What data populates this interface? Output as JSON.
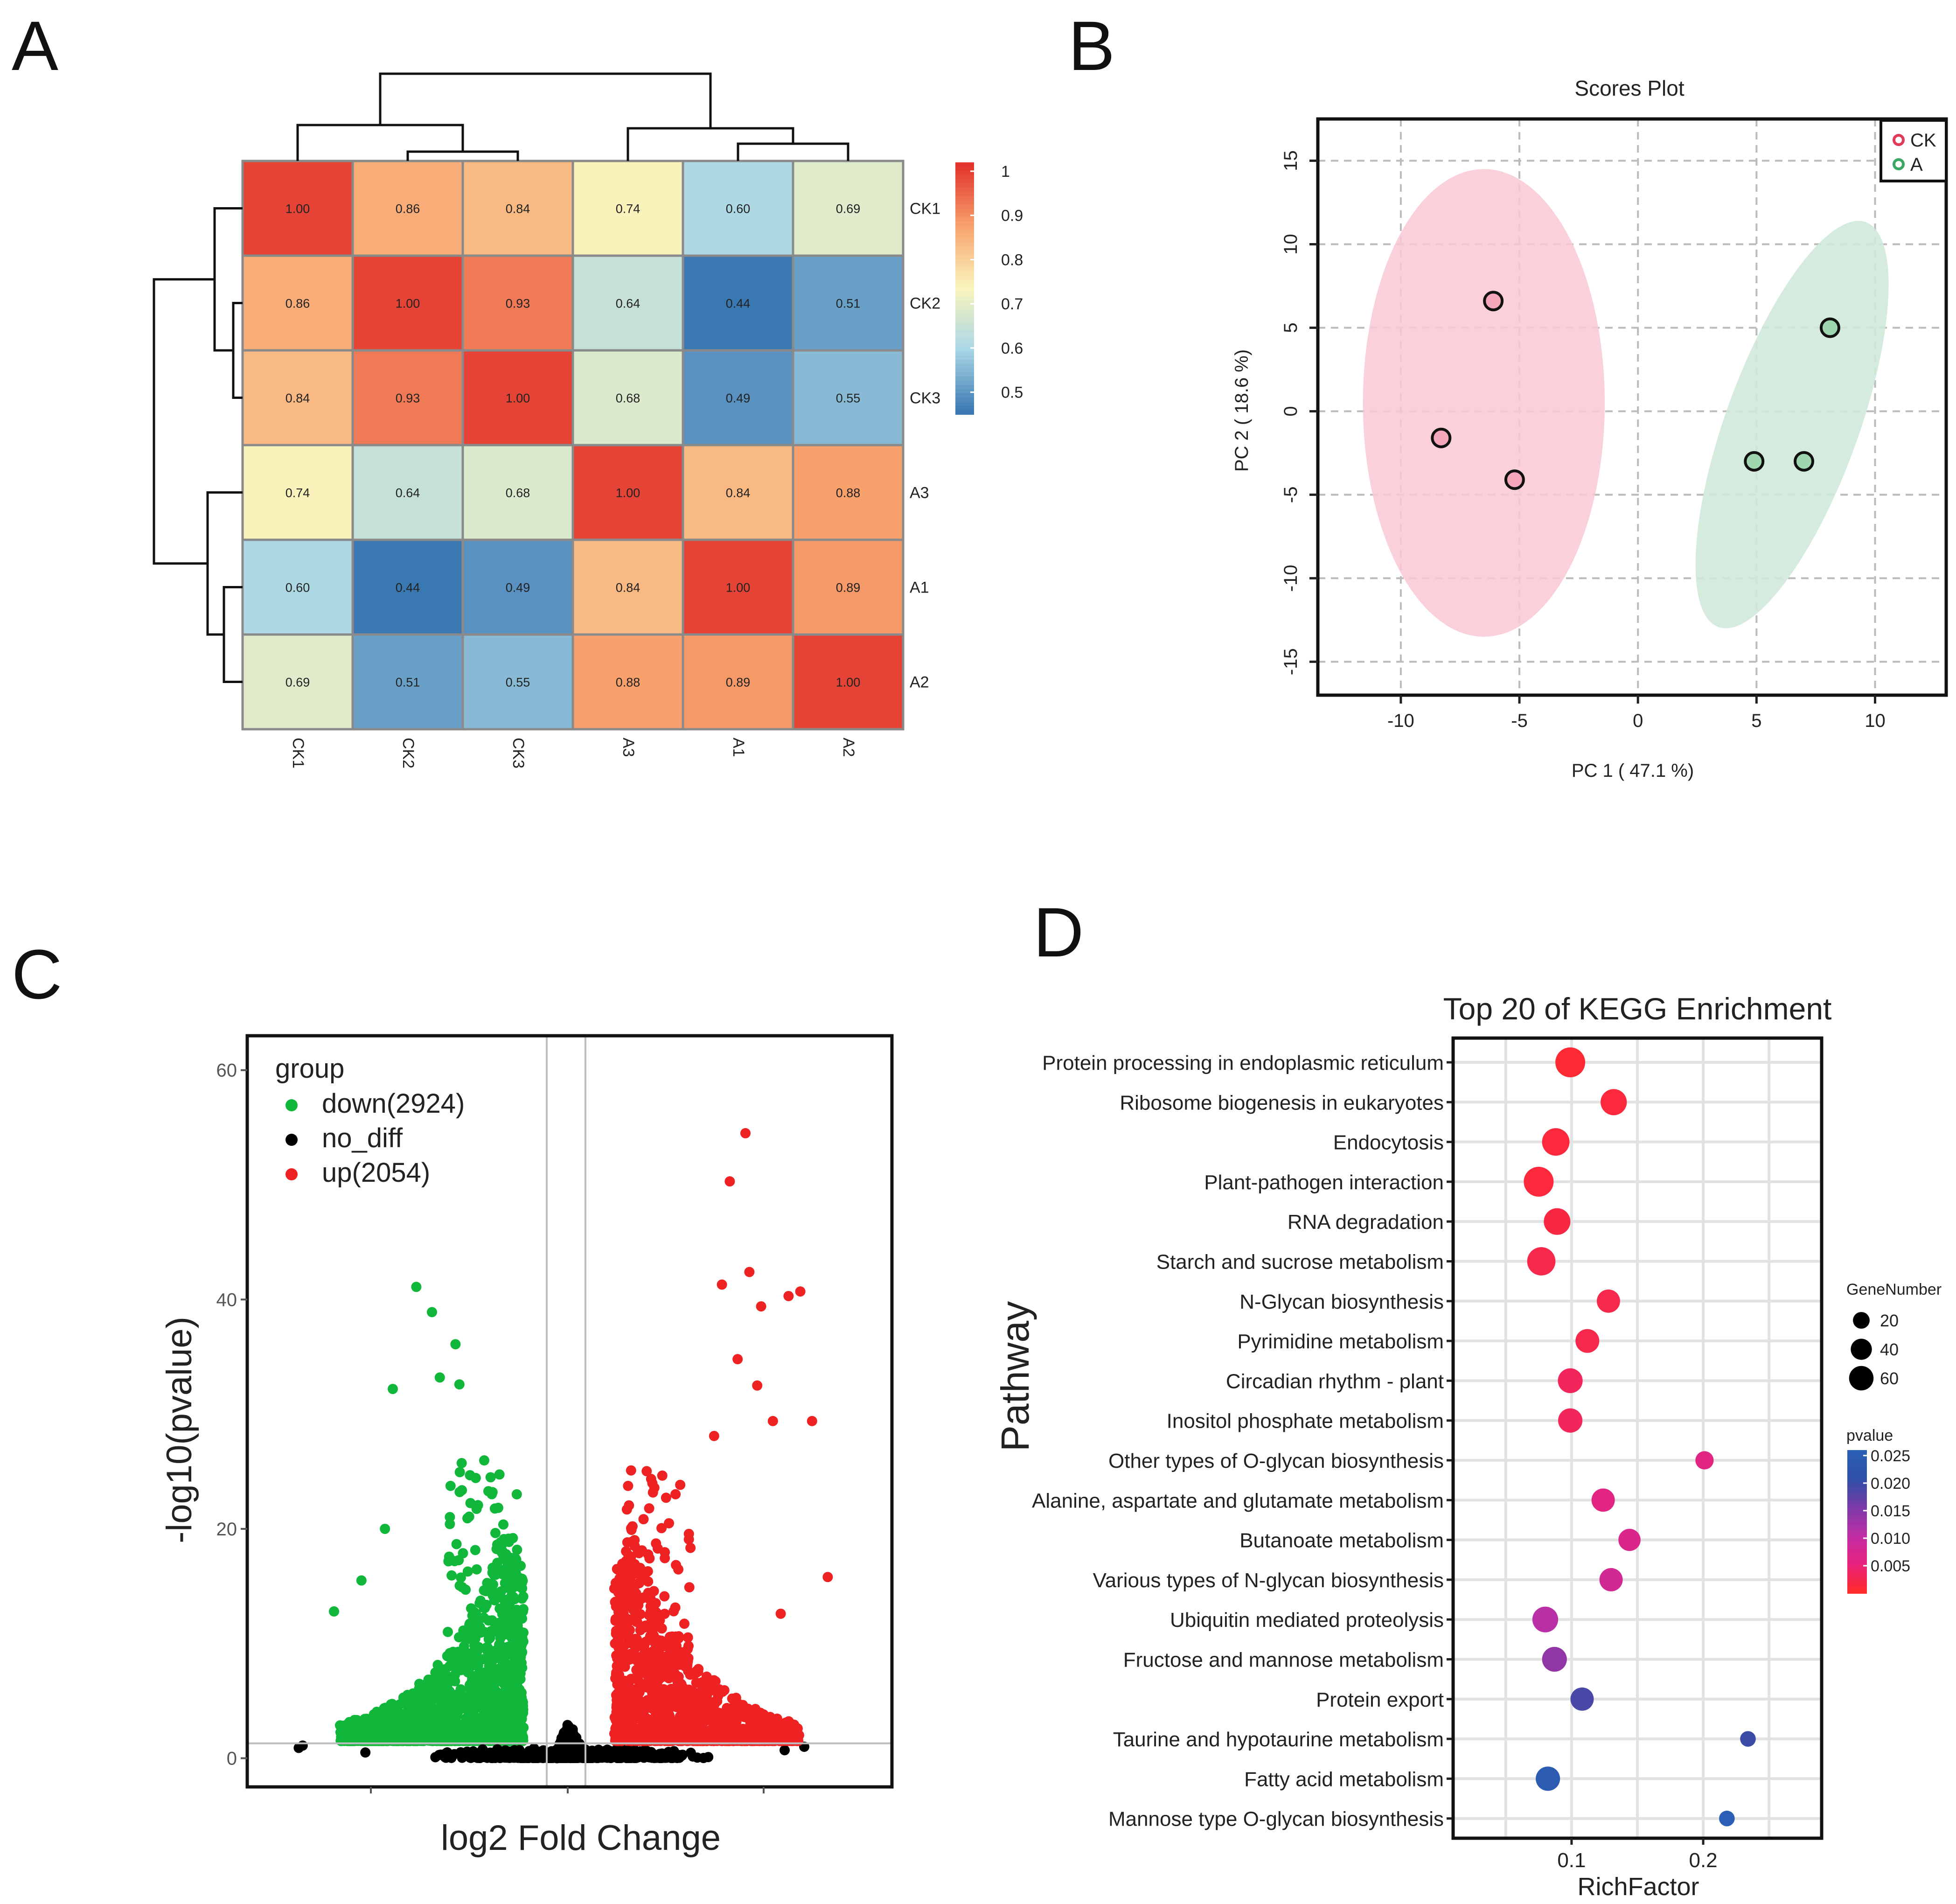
{
  "panels": {
    "a": "A",
    "b": "B",
    "c": "C",
    "d": "D"
  },
  "chart_data": [
    {
      "type": "heatmap",
      "panel": "A",
      "row_labels": [
        "CK1",
        "CK2",
        "CK3",
        "A3",
        "A1",
        "A2"
      ],
      "col_labels": [
        "CK1",
        "CK2",
        "CK3",
        "A3",
        "A1",
        "A2"
      ],
      "values": [
        [
          "1.00",
          "0.86",
          "0.84",
          "0.74",
          "0.60",
          "0.69"
        ],
        [
          "0.86",
          "1.00",
          "0.93",
          "0.64",
          "0.44",
          "0.51"
        ],
        [
          "0.84",
          "0.93",
          "1.00",
          "0.68",
          "0.49",
          "0.55"
        ],
        [
          "0.74",
          "0.64",
          "0.68",
          "1.00",
          "0.84",
          "0.88"
        ],
        [
          "0.60",
          "0.44",
          "0.49",
          "0.84",
          "1.00",
          "0.89"
        ],
        [
          "0.69",
          "0.51",
          "0.55",
          "0.88",
          "0.89",
          "1.00"
        ]
      ],
      "colorbar_ticks": [
        "1",
        "0.9",
        "0.8",
        "0.7",
        "0.6",
        "0.5"
      ],
      "colorbar_range": [
        0.45,
        1.02
      ],
      "colors": [
        "#3a78b2",
        "#a9d6e6",
        "#faf5be",
        "#f8a36e",
        "#e2332c"
      ]
    },
    {
      "type": "scatter",
      "panel": "B",
      "title": "Scores Plot",
      "xlabel": "PC 1 ( 47.1 %)",
      "ylabel": "PC 2 ( 18.6 %)",
      "xlim": [
        -13.5,
        13
      ],
      "ylim": [
        -17,
        17.5
      ],
      "xticks": [
        "-10",
        "-5",
        "0",
        "5",
        "10"
      ],
      "yticks": [
        "15",
        "10",
        "5",
        "0",
        "-5",
        "-10",
        "-15"
      ],
      "series": [
        {
          "name": "CK",
          "color": "#e03a57",
          "fill": "#f4a7b8",
          "ellipse_color": "#f9c9d3",
          "points": [
            [
              -6.1,
              6.6
            ],
            [
              -8.3,
              -1.6
            ],
            [
              -5.2,
              -4.1
            ]
          ]
        },
        {
          "name": "A",
          "color": "#3aa763",
          "fill": "#9fd6b0",
          "ellipse_color": "#cfe9d9",
          "points": [
            [
              8.1,
              5.0
            ],
            [
              4.9,
              -3.0
            ],
            [
              7.0,
              -3.0
            ]
          ]
        }
      ]
    },
    {
      "type": "scatter",
      "panel": "C",
      "xlabel": "log2 Fold Change",
      "ylabel": "-log10(pvalue)",
      "ylim": [
        -2.5,
        63
      ],
      "yticks": [
        "0",
        "20",
        "40",
        "60"
      ],
      "threshold_y": 1.3,
      "legend_title": "group",
      "series": [
        {
          "name": "down(2924)",
          "color": "#11b73a"
        },
        {
          "name": "no_diff",
          "color": "#000000"
        },
        {
          "name": "up(2054)",
          "color": "#ee2222"
        }
      ],
      "highlight_points_up": [
        [
          4.5,
          54.5
        ],
        [
          4.1,
          50.3
        ],
        [
          3.9,
          41.3
        ],
        [
          4.6,
          42.4
        ],
        [
          5.6,
          40.3
        ],
        [
          5.9,
          40.7
        ],
        [
          4.9,
          39.4
        ],
        [
          4.3,
          34.8
        ],
        [
          4.8,
          32.5
        ],
        [
          5.2,
          29.4
        ],
        [
          6.2,
          29.4
        ],
        [
          3.7,
          28.1
        ],
        [
          6.6,
          15.8
        ],
        [
          5.4,
          12.6
        ]
      ],
      "highlight_points_down": [
        [
          -3.9,
          41.1
        ],
        [
          -3.5,
          38.9
        ],
        [
          -2.9,
          36.1
        ],
        [
          -3.3,
          33.2
        ],
        [
          -4.5,
          32.2
        ],
        [
          -2.8,
          32.6
        ],
        [
          -4.7,
          20.0
        ],
        [
          -5.3,
          15.5
        ],
        [
          -6.0,
          12.8
        ]
      ]
    },
    {
      "type": "scatter",
      "panel": "D",
      "title": "Top 20 of KEGG Enrichment",
      "xlabel": "RichFactor",
      "ylabel": "Pathway",
      "xlim": [
        0.01,
        0.29
      ],
      "xticks": [
        "0.1",
        "0.2"
      ],
      "size_legend_title": "GeneNumber",
      "size_legend": [
        "20",
        "40",
        "60"
      ],
      "color_legend_title": "pvalue",
      "color_legend_ticks": [
        "0.025",
        "0.020",
        "0.015",
        "0.010",
        "0.005"
      ],
      "color_range": [
        0.0,
        0.026
      ],
      "pathways": [
        {
          "name": "Protein processing in endoplasmic reticulum",
          "x": 0.099,
          "size": 60,
          "p": 0.0005
        },
        {
          "name": "Ribosome biogenesis in eukaryotes",
          "x": 0.132,
          "size": 42,
          "p": 0.001
        },
        {
          "name": "Endocytosis",
          "x": 0.088,
          "size": 48,
          "p": 0.001
        },
        {
          "name": "Plant-pathogen interaction",
          "x": 0.075,
          "size": 60,
          "p": 0.001
        },
        {
          "name": "RNA degradation",
          "x": 0.089,
          "size": 44,
          "p": 0.0015
        },
        {
          "name": "Starch and sucrose metabolism",
          "x": 0.077,
          "size": 52,
          "p": 0.002
        },
        {
          "name": "N-Glycan biosynthesis",
          "x": 0.128,
          "size": 30,
          "p": 0.002
        },
        {
          "name": "Pyrimidine metabolism",
          "x": 0.112,
          "size": 32,
          "p": 0.002
        },
        {
          "name": "Circadian rhythm - plant",
          "x": 0.099,
          "size": 36,
          "p": 0.003
        },
        {
          "name": "Inositol phosphate metabolism",
          "x": 0.099,
          "size": 34,
          "p": 0.003
        },
        {
          "name": "Other types of O-glycan biosynthesis",
          "x": 0.201,
          "size": 14,
          "p": 0.006
        },
        {
          "name": "Alanine, aspartate and glutamate metabolism",
          "x": 0.124,
          "size": 30,
          "p": 0.006
        },
        {
          "name": "Butanoate metabolism",
          "x": 0.144,
          "size": 26,
          "p": 0.007
        },
        {
          "name": "Various types of N-glycan biosynthesis",
          "x": 0.13,
          "size": 30,
          "p": 0.008
        },
        {
          "name": "Ubiquitin mediated proteolysis",
          "x": 0.08,
          "size": 40,
          "p": 0.011
        },
        {
          "name": "Fructose and mannose metabolism",
          "x": 0.087,
          "size": 36,
          "p": 0.014
        },
        {
          "name": "Protein export",
          "x": 0.108,
          "size": 30,
          "p": 0.019
        },
        {
          "name": "Taurine and hypotaurine metabolism",
          "x": 0.234,
          "size": 8,
          "p": 0.02
        },
        {
          "name": "Fatty acid metabolism",
          "x": 0.082,
          "size": 34,
          "p": 0.025
        },
        {
          "name": "Mannose type O-glycan biosynthesis",
          "x": 0.218,
          "size": 8,
          "p": 0.026
        }
      ]
    }
  ]
}
